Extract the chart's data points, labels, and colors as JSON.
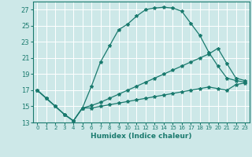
{
  "xlabel": "Humidex (Indice chaleur)",
  "bg_color": "#cde8e8",
  "grid_color": "#ffffff",
  "line_color": "#1a7a6e",
  "xlim": [
    -0.5,
    23.5
  ],
  "ylim": [
    13,
    28
  ],
  "yticks": [
    13,
    15,
    17,
    19,
    21,
    23,
    25,
    27
  ],
  "xticks": [
    0,
    1,
    2,
    3,
    4,
    5,
    6,
    7,
    8,
    9,
    10,
    11,
    12,
    13,
    14,
    15,
    16,
    17,
    18,
    19,
    20,
    21,
    22,
    23
  ],
  "line1_x": [
    0,
    1,
    2,
    3,
    4,
    5,
    6,
    7,
    8,
    9,
    10,
    11,
    12,
    13,
    14,
    15,
    16,
    17,
    18,
    19,
    20,
    21,
    22,
    23
  ],
  "line1_y": [
    17,
    16,
    15,
    14,
    13.2,
    14.8,
    17.5,
    20.5,
    22.5,
    24.5,
    25.2,
    26.2,
    27.0,
    27.2,
    27.3,
    27.2,
    26.8,
    25.3,
    23.8,
    21.7,
    20.0,
    18.5,
    18.2,
    18.0
  ],
  "line2_x": [
    0,
    1,
    2,
    3,
    4,
    5,
    6,
    7,
    8,
    9,
    10,
    11,
    12,
    13,
    14,
    15,
    16,
    17,
    18,
    19,
    20,
    21,
    22,
    23
  ],
  "line2_y": [
    17,
    16,
    15,
    14,
    13.2,
    14.8,
    15.1,
    15.5,
    16.0,
    16.5,
    17.0,
    17.5,
    18.0,
    18.5,
    19.0,
    19.5,
    20.0,
    20.5,
    21.0,
    21.5,
    22.2,
    20.3,
    18.5,
    18.2
  ],
  "line3_x": [
    0,
    1,
    2,
    3,
    4,
    5,
    6,
    7,
    8,
    9,
    10,
    11,
    12,
    13,
    14,
    15,
    16,
    17,
    18,
    19,
    20,
    21,
    22,
    23
  ],
  "line3_y": [
    17,
    16,
    15,
    14,
    13.2,
    14.8,
    14.8,
    15.0,
    15.2,
    15.4,
    15.6,
    15.8,
    16.0,
    16.2,
    16.4,
    16.6,
    16.8,
    17.0,
    17.2,
    17.4,
    17.2,
    17.0,
    17.7,
    17.9
  ]
}
